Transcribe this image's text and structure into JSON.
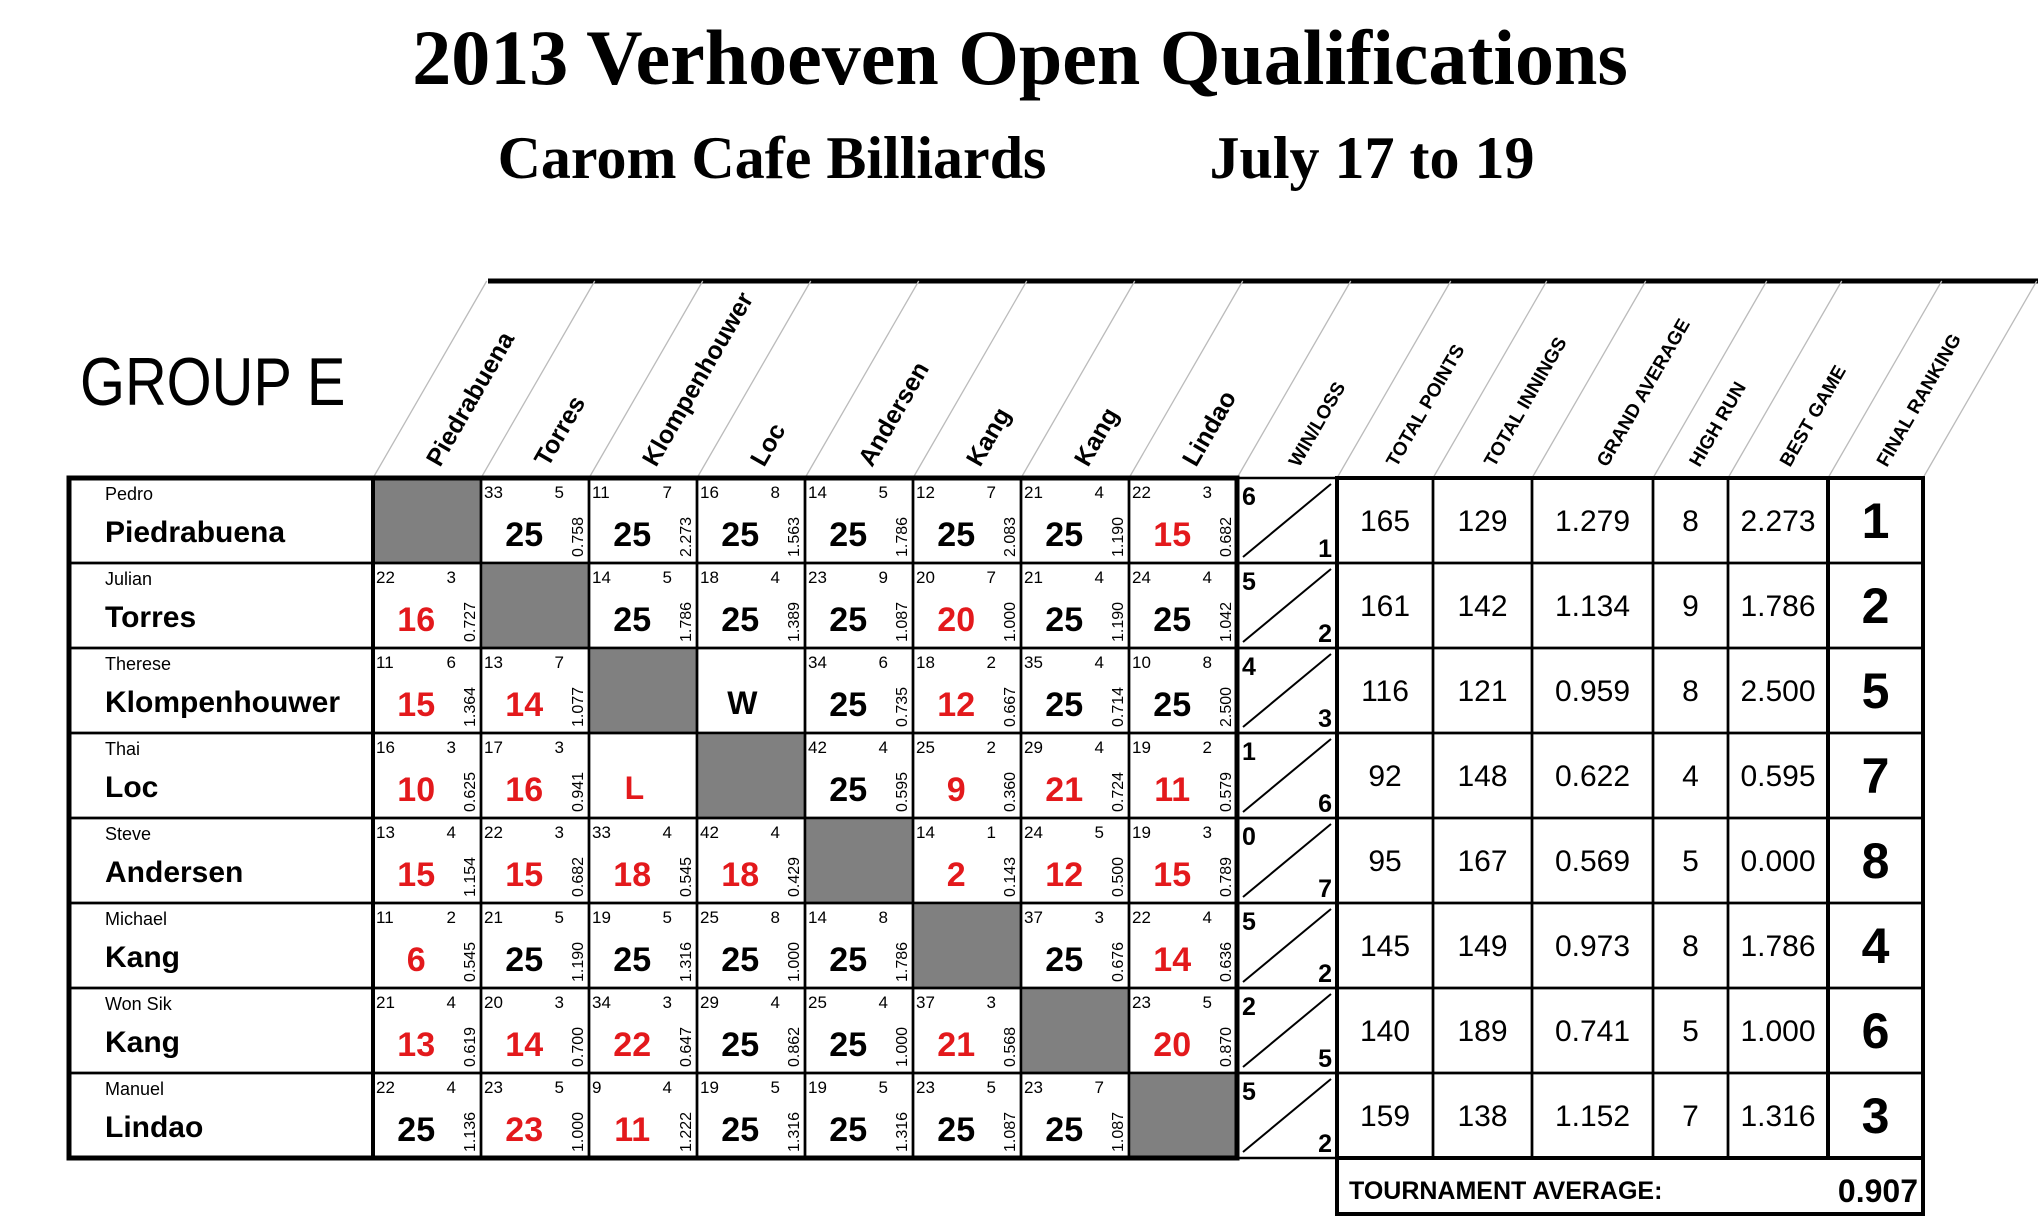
{
  "header": {
    "title": "2013 Verhoeven Open Qualifications",
    "venue": "Carom Cafe Billiards",
    "dates": "July 17 to 19",
    "group": "GROUP E"
  },
  "columns": [
    "Piedrabuena",
    "Torres",
    "Klompenhouwer",
    "Loc",
    "Andersen",
    "Kang",
    "Kang",
    "Lindao",
    "WIN/LOSS",
    "TOTAL POINTS",
    "TOTAL INNINGS",
    "GRAND AVERAGE",
    "HIGH RUN",
    "BEST GAME",
    "FINAL RANKING"
  ],
  "colors": {
    "win": "#000000",
    "loss": "#e3191c",
    "blocked": "#808080"
  },
  "rows": [
    {
      "first": "Pedro",
      "last": "Piedrabuena",
      "cells": [
        null,
        {
          "innings": 33,
          "run": 5,
          "score": 25,
          "avg": "0.758"
        },
        {
          "innings": 11,
          "run": 7,
          "score": 25,
          "avg": "2.273"
        },
        {
          "innings": 16,
          "run": 8,
          "score": 25,
          "avg": "1.563"
        },
        {
          "innings": 14,
          "run": 5,
          "score": 25,
          "avg": "1.786"
        },
        {
          "innings": 12,
          "run": 7,
          "score": 25,
          "avg": "2.083"
        },
        {
          "innings": 21,
          "run": 4,
          "score": 25,
          "avg": "1.190"
        },
        {
          "innings": 22,
          "run": 3,
          "score": 15,
          "avg": "0.682"
        }
      ],
      "wins": 6,
      "losses": 1,
      "points": 165,
      "innings": 129,
      "average": "1.279",
      "high_run": 8,
      "best_game": "2.273",
      "rank": 1
    },
    {
      "first": "Julian",
      "last": "Torres",
      "cells": [
        {
          "innings": 22,
          "run": 3,
          "score": 16,
          "avg": "0.727"
        },
        null,
        {
          "innings": 14,
          "run": 5,
          "score": 25,
          "avg": "1.786"
        },
        {
          "innings": 18,
          "run": 4,
          "score": 25,
          "avg": "1.389"
        },
        {
          "innings": 23,
          "run": 9,
          "score": 25,
          "avg": "1.087"
        },
        {
          "innings": 20,
          "run": 7,
          "score": 20,
          "avg": "1.000"
        },
        {
          "innings": 21,
          "run": 4,
          "score": 25,
          "avg": "1.190"
        },
        {
          "innings": 24,
          "run": 4,
          "score": 25,
          "avg": "1.042"
        }
      ],
      "wins": 5,
      "losses": 2,
      "points": 161,
      "innings": 142,
      "average": "1.134",
      "high_run": 9,
      "best_game": "1.786",
      "rank": 2
    },
    {
      "first": "Therese",
      "last": "Klompenhouwer",
      "cells": [
        {
          "innings": 11,
          "run": 6,
          "score": 15,
          "avg": "1.364"
        },
        {
          "innings": 13,
          "run": 7,
          "score": 14,
          "avg": "1.077"
        },
        null,
        "W",
        {
          "innings": 34,
          "run": 6,
          "score": 25,
          "avg": "0.735"
        },
        {
          "innings": 18,
          "run": 2,
          "score": 12,
          "avg": "0.667"
        },
        {
          "innings": 35,
          "run": 4,
          "score": 25,
          "avg": "0.714"
        },
        {
          "innings": 10,
          "run": 8,
          "score": 25,
          "avg": "2.500"
        }
      ],
      "wins": 4,
      "losses": 3,
      "points": 116,
      "innings": 121,
      "average": "0.959",
      "high_run": 8,
      "best_game": "2.500",
      "rank": 5
    },
    {
      "first": "Thai",
      "last": "Loc",
      "cells": [
        {
          "innings": 16,
          "run": 3,
          "score": 10,
          "avg": "0.625"
        },
        {
          "innings": 17,
          "run": 3,
          "score": 16,
          "avg": "0.941"
        },
        "L",
        null,
        {
          "innings": 42,
          "run": 4,
          "score": 25,
          "avg": "0.595"
        },
        {
          "innings": 25,
          "run": 2,
          "score": 9,
          "avg": "0.360"
        },
        {
          "innings": 29,
          "run": 4,
          "score": 21,
          "avg": "0.724"
        },
        {
          "innings": 19,
          "run": 2,
          "score": 11,
          "avg": "0.579"
        }
      ],
      "wins": 1,
      "losses": 6,
      "points": 92,
      "innings": 148,
      "average": "0.622",
      "high_run": 4,
      "best_game": "0.595",
      "rank": 7
    },
    {
      "first": "Steve",
      "last": "Andersen",
      "cells": [
        {
          "innings": 13,
          "run": 4,
          "score": 15,
          "avg": "1.154"
        },
        {
          "innings": 22,
          "run": 3,
          "score": 15,
          "avg": "0.682"
        },
        {
          "innings": 33,
          "run": 4,
          "score": 18,
          "avg": "0.545"
        },
        {
          "innings": 42,
          "run": 4,
          "score": 18,
          "avg": "0.429"
        },
        null,
        {
          "innings": 14,
          "run": 1,
          "score": 2,
          "avg": "0.143"
        },
        {
          "innings": 24,
          "run": 5,
          "score": 12,
          "avg": "0.500"
        },
        {
          "innings": 19,
          "run": 3,
          "score": 15,
          "avg": "0.789"
        }
      ],
      "wins": 0,
      "losses": 7,
      "points": 95,
      "innings": 167,
      "average": "0.569",
      "high_run": 5,
      "best_game": "0.000",
      "rank": 8
    },
    {
      "first": "Michael",
      "last": "Kang",
      "cells": [
        {
          "innings": 11,
          "run": 2,
          "score": 6,
          "avg": "0.545"
        },
        {
          "innings": 21,
          "run": 5,
          "score": 25,
          "avg": "1.190"
        },
        {
          "innings": 19,
          "run": 5,
          "score": 25,
          "avg": "1.316"
        },
        {
          "innings": 25,
          "run": 8,
          "score": 25,
          "avg": "1.000"
        },
        {
          "innings": 14,
          "run": 8,
          "score": 25,
          "avg": "1.786"
        },
        null,
        {
          "innings": 37,
          "run": 3,
          "score": 25,
          "avg": "0.676"
        },
        {
          "innings": 22,
          "run": 4,
          "score": 14,
          "avg": "0.636"
        }
      ],
      "wins": 5,
      "losses": 2,
      "points": 145,
      "innings": 149,
      "average": "0.973",
      "high_run": 8,
      "best_game": "1.786",
      "rank": 4
    },
    {
      "first": "Won Sik",
      "last": "Kang",
      "cells": [
        {
          "innings": 21,
          "run": 4,
          "score": 13,
          "avg": "0.619"
        },
        {
          "innings": 20,
          "run": 3,
          "score": 14,
          "avg": "0.700"
        },
        {
          "innings": 34,
          "run": 3,
          "score": 22,
          "avg": "0.647"
        },
        {
          "innings": 29,
          "run": 4,
          "score": 25,
          "avg": "0.862"
        },
        {
          "innings": 25,
          "run": 4,
          "score": 25,
          "avg": "1.000"
        },
        {
          "innings": 37,
          "run": 3,
          "score": 21,
          "avg": "0.568"
        },
        null,
        {
          "innings": 23,
          "run": 5,
          "score": 20,
          "avg": "0.870"
        }
      ],
      "wins": 2,
      "losses": 5,
      "points": 140,
      "innings": 189,
      "average": "0.741",
      "high_run": 5,
      "best_game": "1.000",
      "rank": 6
    },
    {
      "first": "Manuel",
      "last": "Lindao",
      "cells": [
        {
          "innings": 22,
          "run": 4,
          "score": 25,
          "avg": "1.136"
        },
        {
          "innings": 23,
          "run": 5,
          "score": 23,
          "avg": "1.000"
        },
        {
          "innings": 9,
          "run": 4,
          "score": 11,
          "avg": "1.222"
        },
        {
          "innings": 19,
          "run": 5,
          "score": 25,
          "avg": "1.316"
        },
        {
          "innings": 19,
          "run": 5,
          "score": 25,
          "avg": "1.316"
        },
        {
          "innings": 23,
          "run": 5,
          "score": 25,
          "avg": "1.087"
        },
        {
          "innings": 23,
          "run": 7,
          "score": 25,
          "avg": "1.087"
        },
        null
      ],
      "wins": 5,
      "losses": 2,
      "points": 159,
      "innings": 138,
      "average": "1.152",
      "high_run": 7,
      "best_game": "1.316",
      "rank": 3
    }
  ],
  "footer": {
    "label": "TOURNAMENT AVERAGE:",
    "value": "0.907"
  }
}
